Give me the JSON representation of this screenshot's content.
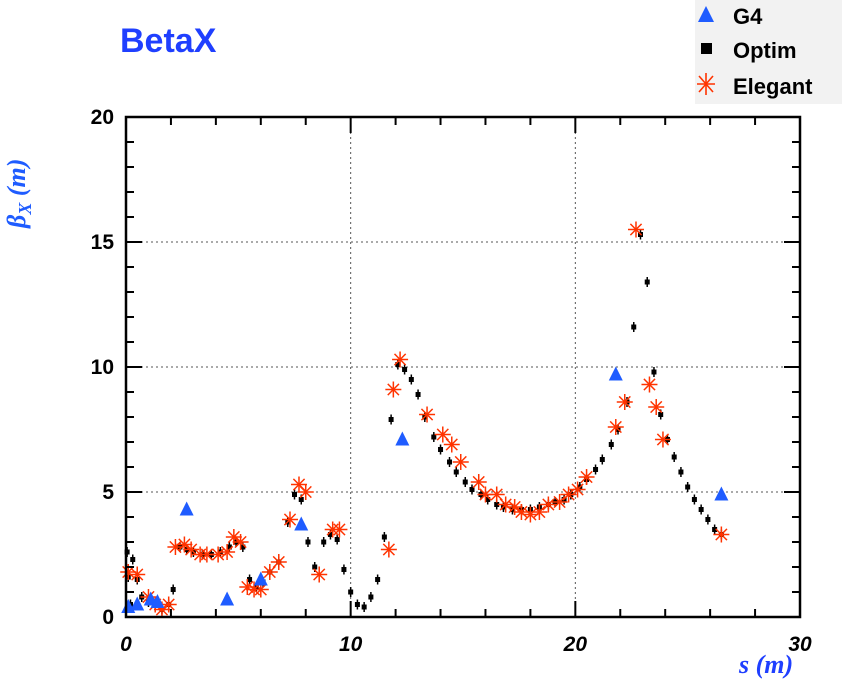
{
  "chart_data": {
    "type": "scatter",
    "title": "BetaX",
    "xlabel": "s (m)",
    "ylabel_main": "β",
    "ylabel_sub": "X",
    "ylabel_unit": " (m)",
    "xlim": [
      0,
      30
    ],
    "ylim": [
      0,
      20
    ],
    "xticks": [
      "0",
      "10",
      "20",
      "30"
    ],
    "yticks": [
      "0",
      "5",
      "10",
      "15",
      "20"
    ],
    "grid": true,
    "legend_position": "top-right",
    "colors": {
      "title": "#1f3fff",
      "G4": "#1f5cff",
      "Optim": "#000000",
      "Elegant": "#ff3300",
      "ylabel": "#1f5cff",
      "xlabel": "#1f3fff"
    },
    "series": [
      {
        "name": "G4",
        "marker": "triangle",
        "x": [
          0.1,
          0.5,
          1.1,
          1.4,
          2.7,
          4.5,
          6.0,
          7.8,
          12.3,
          21.8,
          26.5
        ],
        "y": [
          0.4,
          0.5,
          0.7,
          0.6,
          4.3,
          0.7,
          1.5,
          3.7,
          7.1,
          9.7,
          4.9
        ]
      },
      {
        "name": "Optim",
        "marker": "square",
        "x": [
          0.05,
          0.1,
          0.2,
          0.3,
          0.5,
          0.7,
          1.0,
          1.3,
          1.6,
          1.9,
          2.1,
          2.4,
          2.7,
          3.0,
          3.4,
          3.8,
          4.2,
          4.6,
          4.9,
          5.2,
          5.5,
          5.8,
          6.1,
          6.4,
          6.8,
          7.2,
          7.5,
          7.8,
          8.1,
          8.4,
          8.8,
          9.1,
          9.4,
          9.7,
          10.0,
          10.3,
          10.6,
          10.9,
          11.2,
          11.5,
          11.8,
          12.1,
          12.4,
          12.7,
          13.0,
          13.3,
          13.7,
          14.0,
          14.4,
          14.7,
          15.1,
          15.4,
          15.8,
          16.1,
          16.5,
          16.8,
          17.2,
          17.6,
          18.0,
          18.4,
          18.8,
          19.1,
          19.5,
          19.8,
          20.2,
          20.5,
          20.9,
          21.2,
          21.6,
          21.9,
          22.3,
          22.6,
          22.9,
          23.2,
          23.5,
          23.8,
          24.1,
          24.4,
          24.7,
          25.0,
          25.3,
          25.6,
          25.9,
          26.2,
          26.5
        ],
        "y": [
          2.6,
          1.6,
          0.5,
          2.3,
          1.5,
          0.8,
          0.6,
          0.5,
          0.3,
          0.5,
          1.1,
          2.8,
          2.7,
          2.6,
          2.5,
          2.5,
          2.6,
          2.8,
          3.0,
          2.8,
          1.5,
          1.2,
          1.4,
          1.8,
          2.2,
          3.8,
          4.9,
          4.7,
          3.0,
          2.0,
          3.0,
          3.3,
          3.1,
          1.9,
          1.0,
          0.5,
          0.4,
          0.8,
          1.5,
          3.2,
          7.9,
          10.1,
          9.9,
          9.5,
          8.9,
          8.0,
          7.2,
          6.7,
          6.2,
          5.8,
          5.4,
          5.1,
          4.9,
          4.7,
          4.5,
          4.4,
          4.3,
          4.3,
          4.3,
          4.4,
          4.5,
          4.6,
          4.7,
          4.9,
          5.2,
          5.5,
          5.9,
          6.3,
          6.9,
          7.5,
          8.6,
          11.6,
          15.3,
          13.4,
          9.8,
          8.1,
          7.1,
          6.4,
          5.8,
          5.2,
          4.7,
          4.3,
          3.9,
          3.5,
          3.3
        ]
      },
      {
        "name": "Elegant",
        "marker": "star",
        "x": [
          0.1,
          0.5,
          1.0,
          1.3,
          1.6,
          1.9,
          2.2,
          2.6,
          2.9,
          3.3,
          3.6,
          4.1,
          4.5,
          4.8,
          5.1,
          5.4,
          5.7,
          6.0,
          6.4,
          6.8,
          7.3,
          7.7,
          8.0,
          8.6,
          9.2,
          9.5,
          11.7,
          11.9,
          12.2,
          13.4,
          14.1,
          14.5,
          14.9,
          15.7,
          16.0,
          16.5,
          16.9,
          17.3,
          17.6,
          18.0,
          18.4,
          18.8,
          19.3,
          19.7,
          20.1,
          20.5,
          21.8,
          22.2,
          22.7,
          23.3,
          23.6,
          23.9,
          26.5
        ],
        "y": [
          1.8,
          1.7,
          0.8,
          0.5,
          0.3,
          0.5,
          2.8,
          2.9,
          2.7,
          2.5,
          2.5,
          2.5,
          2.6,
          3.2,
          3.0,
          1.2,
          1.1,
          1.1,
          1.8,
          2.2,
          3.9,
          5.3,
          5.0,
          1.7,
          3.5,
          3.5,
          2.7,
          9.1,
          10.3,
          8.1,
          7.3,
          6.9,
          6.2,
          5.4,
          4.9,
          4.9,
          4.5,
          4.4,
          4.2,
          4.1,
          4.2,
          4.5,
          4.6,
          4.9,
          5.1,
          5.6,
          7.6,
          8.6,
          15.5,
          9.3,
          8.4,
          7.1,
          3.3
        ]
      }
    ]
  }
}
